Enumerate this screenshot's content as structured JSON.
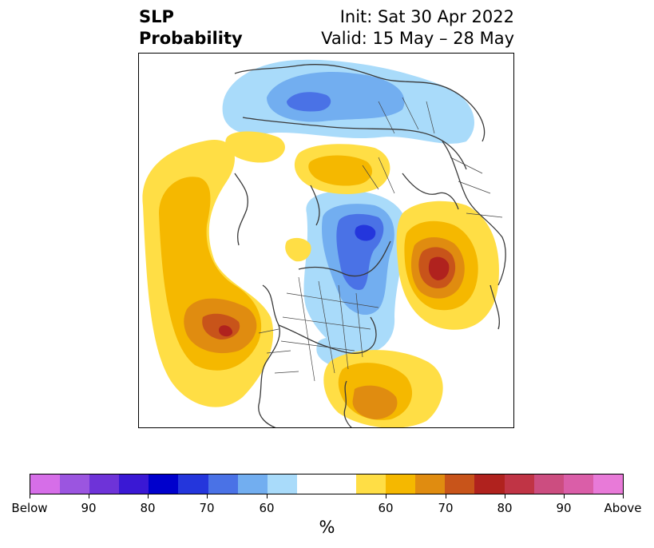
{
  "title": {
    "left_line1": "SLP",
    "left_line2": "Probability",
    "init": "Init: Sat 30 Apr 2022",
    "valid": "Valid: 15 May – 28 May"
  },
  "colors": {
    "below": [
      "#d66ee8",
      "#9b55e0",
      "#6e33d8",
      "#3a18d4",
      "#0000cc",
      "#2436dc",
      "#4a72e6",
      "#72aef0",
      "#a9dbfa"
    ],
    "neutral": "#ffffff",
    "above": [
      "#ffde45",
      "#f5b800",
      "#e08c10",
      "#c8541a",
      "#b0221e",
      "#c03445",
      "#cc4d80",
      "#da5ea8",
      "#e87ad8"
    ]
  },
  "colorbar": {
    "tick_labels": [
      "Below",
      "90",
      "80",
      "70",
      "60",
      "60",
      "70",
      "80",
      "90",
      "Above"
    ],
    "unit": "%"
  }
}
